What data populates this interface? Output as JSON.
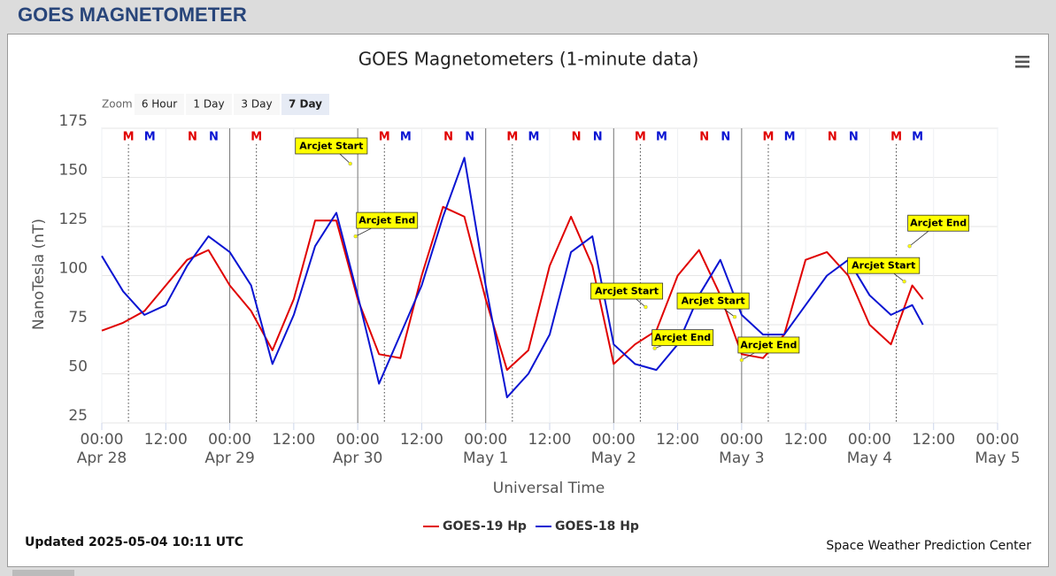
{
  "header": {
    "title": "GOES MAGNETOMETER"
  },
  "zoom": {
    "label": "Zoom",
    "buttons": [
      "6 Hour",
      "1 Day",
      "3 Day",
      "7 Day"
    ],
    "selected": 3
  },
  "updated": "Updated 2025-05-04 10:11 UTC",
  "credit": "Space Weather Prediction Center",
  "chart_data": {
    "type": "line",
    "title": "GOES Magnetometers (1-minute data)",
    "y_label": "NanoTesla (nT)",
    "x_label": "Universal Time",
    "xlim": [
      0,
      168
    ],
    "ylim": [
      25,
      175
    ],
    "yticks": [
      25,
      50,
      75,
      100,
      125,
      150,
      175
    ],
    "xticks": [
      {
        "value": 0,
        "label": "00:00"
      },
      {
        "value": 12,
        "label": "12:00"
      },
      {
        "value": 24,
        "label": "00:00"
      },
      {
        "value": 36,
        "label": "12:00"
      },
      {
        "value": 48,
        "label": "00:00"
      },
      {
        "value": 60,
        "label": "12:00"
      },
      {
        "value": 72,
        "label": "00:00"
      },
      {
        "value": 84,
        "label": "12:00"
      },
      {
        "value": 96,
        "label": "00:00"
      },
      {
        "value": 108,
        "label": "12:00"
      },
      {
        "value": 120,
        "label": "00:00"
      },
      {
        "value": 132,
        "label": "12:00"
      },
      {
        "value": 144,
        "label": "00:00"
      },
      {
        "value": 156,
        "label": "12:00"
      },
      {
        "value": 168,
        "label": "00:00"
      }
    ],
    "xtick_dates": [
      "Apr 28",
      null,
      "Apr 29",
      null,
      "Apr 30",
      null,
      "May 1",
      null,
      "May 2",
      null,
      "May 3",
      null,
      "May 4",
      null,
      "May 5"
    ],
    "grid": true,
    "day_lines": [
      24,
      48,
      72,
      96,
      120
    ],
    "x": [
      0,
      4,
      8,
      12,
      16,
      20,
      24,
      28,
      32,
      36,
      40,
      44,
      48,
      52,
      56,
      60,
      64,
      68,
      72,
      76,
      80,
      84,
      88,
      92,
      96,
      100,
      104,
      108,
      112,
      116,
      120,
      124,
      128,
      132,
      136,
      140,
      144,
      148,
      152,
      154
    ],
    "series": [
      {
        "name": "GOES-19 Hp",
        "color": "#e00000",
        "values": [
          72,
          76,
          82,
          95,
          108,
          113,
          95,
          82,
          62,
          88,
          128,
          128,
          88,
          60,
          58,
          100,
          135,
          130,
          88,
          52,
          62,
          105,
          130,
          105,
          55,
          65,
          72,
          100,
          113,
          90,
          60,
          58,
          70,
          108,
          112,
          100,
          75,
          65,
          95,
          88
        ]
      },
      {
        "name": "GOES-18 Hp",
        "color": "#0a14d2",
        "values": [
          110,
          92,
          80,
          85,
          105,
          120,
          112,
          95,
          55,
          80,
          115,
          132,
          90,
          45,
          70,
          95,
          130,
          160,
          95,
          38,
          50,
          70,
          112,
          120,
          65,
          55,
          52,
          65,
          90,
          108,
          80,
          70,
          70,
          85,
          100,
          108,
          90,
          80,
          85,
          75
        ]
      }
    ],
    "legend": "bottom",
    "markers": [
      {
        "label": "M",
        "color": "#e00000",
        "x": 5,
        "dotted_line": true
      },
      {
        "label": "M",
        "color": "#0a14d2",
        "x": 9
      },
      {
        "label": "N",
        "color": "#e00000",
        "x": 17
      },
      {
        "label": "N",
        "color": "#0a14d2",
        "x": 21
      },
      {
        "label": "M",
        "color": "#e00000",
        "x": 29,
        "dotted_line": true
      },
      {
        "label": "M",
        "color": "#e00000",
        "x": 53,
        "dotted_line": true
      },
      {
        "label": "M",
        "color": "#0a14d2",
        "x": 57
      },
      {
        "label": "N",
        "color": "#e00000",
        "x": 65
      },
      {
        "label": "N",
        "color": "#0a14d2",
        "x": 69
      },
      {
        "label": "M",
        "color": "#e00000",
        "x": 77,
        "dotted_line": true
      },
      {
        "label": "M",
        "color": "#0a14d2",
        "x": 81
      },
      {
        "label": "N",
        "color": "#e00000",
        "x": 89
      },
      {
        "label": "N",
        "color": "#0a14d2",
        "x": 93
      },
      {
        "label": "M",
        "color": "#e00000",
        "x": 101,
        "dotted_line": true
      },
      {
        "label": "M",
        "color": "#0a14d2",
        "x": 105
      },
      {
        "label": "N",
        "color": "#e00000",
        "x": 113
      },
      {
        "label": "N",
        "color": "#0a14d2",
        "x": 117
      },
      {
        "label": "M",
        "color": "#e00000",
        "x": 125,
        "dotted_line": true
      },
      {
        "label": "M",
        "color": "#0a14d2",
        "x": 129
      },
      {
        "label": "N",
        "color": "#e00000",
        "x": 137
      },
      {
        "label": "N",
        "color": "#0a14d2",
        "x": 141
      },
      {
        "label": "M",
        "color": "#e00000",
        "x": 149,
        "dotted_line": true
      },
      {
        "label": "M",
        "color": "#0a14d2",
        "x": 153
      }
    ],
    "annotations": [
      {
        "text": "Arcjet Start",
        "x": 46.6,
        "y": 157
      },
      {
        "text": "Arcjet End",
        "x": 47.6,
        "y": 120
      },
      {
        "text": "Arcjet Start",
        "x": 102,
        "y": 84
      },
      {
        "text": "Arcjet End",
        "x": 103.7,
        "y": 63
      },
      {
        "text": "Arcjet Start",
        "x": 118.7,
        "y": 79
      },
      {
        "text": "Arcjet End",
        "x": 120,
        "y": 57
      },
      {
        "text": "Arcjet Start",
        "x": 150.5,
        "y": 97
      },
      {
        "text": "Arcjet End",
        "x": 151.5,
        "y": 115
      }
    ]
  }
}
